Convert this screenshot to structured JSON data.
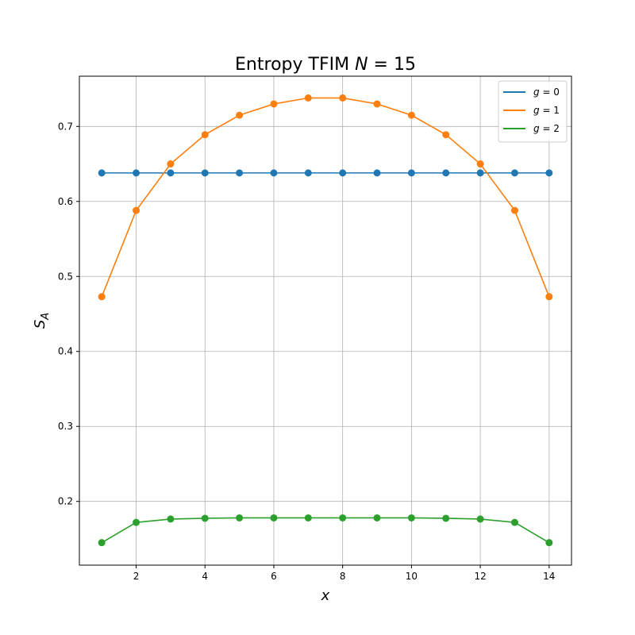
{
  "chart_data": {
    "type": "line",
    "title": "Entropy TFIM N = 15",
    "title_parts": {
      "prefix": "Entropy TFIM ",
      "var": "N",
      "suffix": " = 15"
    },
    "xlabel": "x",
    "ylabel": {
      "base": "S",
      "sub": "A"
    },
    "xlim": [
      0.35,
      14.65
    ],
    "ylim": [
      0.115,
      0.767
    ],
    "xticks": [
      2,
      4,
      6,
      8,
      10,
      12,
      14
    ],
    "yticks": [
      0.2,
      0.3,
      0.4,
      0.5,
      0.6,
      0.7
    ],
    "grid": true,
    "legend_position": "top-right",
    "x": [
      1,
      2,
      3,
      4,
      5,
      6,
      7,
      8,
      9,
      10,
      11,
      12,
      13,
      14
    ],
    "series": [
      {
        "name": "g = 0",
        "name_parts": {
          "var": "g",
          "rest": " = 0"
        },
        "color": "#1f77b4",
        "values": [
          0.638,
          0.638,
          0.638,
          0.638,
          0.638,
          0.638,
          0.638,
          0.638,
          0.638,
          0.638,
          0.638,
          0.638,
          0.638,
          0.638
        ]
      },
      {
        "name": "g = 1",
        "name_parts": {
          "var": "g",
          "rest": " = 1"
        },
        "color": "#ff7f0e",
        "values": [
          0.473,
          0.588,
          0.65,
          0.689,
          0.715,
          0.73,
          0.738,
          0.738,
          0.73,
          0.715,
          0.689,
          0.65,
          0.588,
          0.473
        ]
      },
      {
        "name": "g = 2",
        "name_parts": {
          "var": "g",
          "rest": " = 2"
        },
        "color": "#2ca02c",
        "values": [
          0.145,
          0.172,
          0.1765,
          0.1775,
          0.178,
          0.178,
          0.178,
          0.178,
          0.178,
          0.178,
          0.1775,
          0.1765,
          0.172,
          0.145
        ]
      }
    ]
  }
}
